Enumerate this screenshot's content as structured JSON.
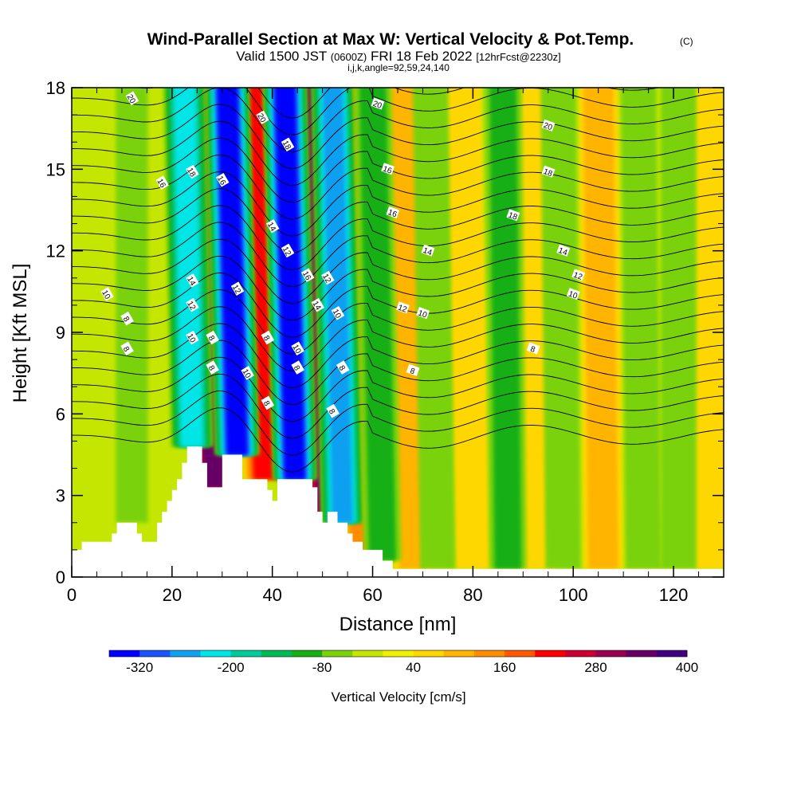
{
  "title": {
    "main": "Wind-Parallel Section at Max W: Vertical Velocity & Pot.Temp.",
    "copyright": "(C)",
    "valid_prefix": "Valid 1500 JST",
    "valid_utc": "(0600Z)",
    "valid_date": "FRI 18 Feb 2022",
    "forecast": "[12hrFcst@2230z]",
    "indices": "i,j,k,angle=92,59,24,140"
  },
  "chart_data": {
    "type": "heatmap",
    "xlabel": "Distance [nm]",
    "ylabel": "Height [Kft MSL]",
    "xlim": [
      0,
      130
    ],
    "ylim": [
      0,
      18
    ],
    "x_ticks": [
      "0",
      "20",
      "40",
      "60",
      "80",
      "100",
      "120"
    ],
    "y_ticks": [
      "0",
      "3",
      "6",
      "9",
      "12",
      "15",
      "18"
    ],
    "colorbar": {
      "title": "Vertical Velocity [cm/s]",
      "tick_labels": [
        "-320",
        "-200",
        "-80",
        "40",
        "160",
        "280",
        "400"
      ],
      "levels": [
        -360,
        -320,
        -280,
        -240,
        -200,
        -160,
        -120,
        -80,
        -40,
        0,
        40,
        80,
        120,
        160,
        200,
        240,
        280,
        320,
        360,
        400
      ],
      "colors": [
        "#0000ff",
        "#1855ff",
        "#0fa0f0",
        "#00e6e6",
        "#00cc99",
        "#00bb55",
        "#16b016",
        "#7ad20a",
        "#c4e600",
        "#f0f000",
        "#ffd700",
        "#ffb400",
        "#ff8c00",
        "#ff5a00",
        "#ff0000",
        "#cc0030",
        "#990050",
        "#660066",
        "#400080"
      ]
    },
    "terrain_profile": [
      [
        0,
        1.0
      ],
      [
        2,
        1.3
      ],
      [
        5,
        1.3
      ],
      [
        8,
        1.6
      ],
      [
        9,
        2.0
      ],
      [
        12,
        2.0
      ],
      [
        13,
        1.6
      ],
      [
        14,
        1.3
      ],
      [
        16,
        1.3
      ],
      [
        17,
        2.0
      ],
      [
        18,
        2.4
      ],
      [
        19,
        2.8
      ],
      [
        20,
        3.2
      ],
      [
        21,
        3.6
      ],
      [
        22,
        4.2
      ],
      [
        23,
        4.8
      ],
      [
        25,
        4.8
      ],
      [
        26,
        4.2
      ],
      [
        27,
        3.3
      ],
      [
        29,
        3.3
      ],
      [
        30,
        4.5
      ],
      [
        33,
        4.5
      ],
      [
        34,
        3.6
      ],
      [
        37,
        3.6
      ],
      [
        39,
        3.2
      ],
      [
        40,
        2.8
      ],
      [
        41,
        3.6
      ],
      [
        47,
        3.6
      ],
      [
        48,
        3.3
      ],
      [
        49,
        2.4
      ],
      [
        50,
        2.0
      ],
      [
        51,
        2.4
      ],
      [
        53,
        2.0
      ],
      [
        55,
        1.6
      ],
      [
        56,
        1.3
      ],
      [
        58,
        1.0
      ],
      [
        62,
        0.6
      ],
      [
        64,
        0.3
      ],
      [
        130,
        0.3
      ]
    ],
    "updraft_bands": [
      {
        "x_bottom": 28.5,
        "x_top": 26,
        "w": 320
      },
      {
        "x_bottom": 38.5,
        "x_top": 36,
        "w": 200
      },
      {
        "x_bottom": 51,
        "x_top": 48.5,
        "w": 320
      },
      {
        "x_bottom": 58,
        "x_top": 55.5,
        "w": 120
      },
      {
        "x_bottom": 68,
        "x_top": 66,
        "w": 80
      },
      {
        "x_bottom": 80,
        "x_top": 78,
        "w": 60
      },
      {
        "x_bottom": 93,
        "x_top": 91,
        "w": 50
      },
      {
        "x_bottom": 106,
        "x_top": 105,
        "w": 100
      },
      {
        "x_bottom": 128,
        "x_top": 128,
        "w": 60
      }
    ],
    "downdraft_bands": [
      {
        "x_bottom": 33,
        "x_top": 31,
        "w": -320
      },
      {
        "x_bottom": 44.5,
        "x_top": 42.5,
        "w": -320
      },
      {
        "x_bottom": 54,
        "x_top": 52,
        "w": -240
      },
      {
        "x_bottom": 24,
        "x_top": 22.5,
        "w": -200
      },
      {
        "x_bottom": 62,
        "x_top": 60,
        "w": -80
      },
      {
        "x_bottom": 73,
        "x_top": 71.5,
        "w": -60
      },
      {
        "x_bottom": 87,
        "x_top": 86,
        "w": -80
      },
      {
        "x_bottom": 98,
        "x_top": 97,
        "w": -60
      },
      {
        "x_bottom": 114,
        "x_top": 113,
        "w": -60
      },
      {
        "x_bottom": 121,
        "x_top": 121,
        "w": -60
      },
      {
        "x_bottom": 12,
        "x_top": 12,
        "w": -40
      }
    ],
    "theta_contour_labels": [
      {
        "text": "20",
        "x": 12,
        "y": 17.6
      },
      {
        "text": "20",
        "x": 38,
        "y": 16.9
      },
      {
        "text": "20",
        "x": 61,
        "y": 17.4
      },
      {
        "text": "20",
        "x": 95,
        "y": 16.6
      },
      {
        "text": "18",
        "x": 24,
        "y": 14.9
      },
      {
        "text": "18",
        "x": 43,
        "y": 15.9
      },
      {
        "text": "18",
        "x": 95,
        "y": 14.9
      },
      {
        "text": "18",
        "x": 88,
        "y": 13.3
      },
      {
        "text": "16",
        "x": 18,
        "y": 14.5
      },
      {
        "text": "16",
        "x": 30,
        "y": 14.6
      },
      {
        "text": "16",
        "x": 63,
        "y": 15.0
      },
      {
        "text": "16",
        "x": 64,
        "y": 13.4
      },
      {
        "text": "16",
        "x": 47,
        "y": 11.1
      },
      {
        "text": "14",
        "x": 40,
        "y": 12.9
      },
      {
        "text": "14",
        "x": 71,
        "y": 12.0
      },
      {
        "text": "14",
        "x": 98,
        "y": 12.0
      },
      {
        "text": "14",
        "x": 24,
        "y": 10.9
      },
      {
        "text": "14",
        "x": 49,
        "y": 10.0
      },
      {
        "text": "12",
        "x": 43,
        "y": 12.0
      },
      {
        "text": "12",
        "x": 33,
        "y": 10.6
      },
      {
        "text": "12",
        "x": 51,
        "y": 11.0
      },
      {
        "text": "12",
        "x": 24,
        "y": 10.0
      },
      {
        "text": "12",
        "x": 66,
        "y": 9.9
      },
      {
        "text": "12",
        "x": 101,
        "y": 11.1
      },
      {
        "text": "10",
        "x": 7,
        "y": 10.4
      },
      {
        "text": "10",
        "x": 24,
        "y": 8.8
      },
      {
        "text": "10",
        "x": 53,
        "y": 9.7
      },
      {
        "text": "10",
        "x": 70,
        "y": 9.7
      },
      {
        "text": "10",
        "x": 45,
        "y": 8.4
      },
      {
        "text": "10",
        "x": 35,
        "y": 7.5
      },
      {
        "text": "10",
        "x": 100,
        "y": 10.4
      },
      {
        "text": "8",
        "x": 11,
        "y": 9.5
      },
      {
        "text": "8",
        "x": 28,
        "y": 8.8
      },
      {
        "text": "8",
        "x": 39,
        "y": 8.8
      },
      {
        "text": "8",
        "x": 28,
        "y": 7.7
      },
      {
        "text": "8",
        "x": 45,
        "y": 7.7
      },
      {
        "text": "8",
        "x": 54,
        "y": 7.7
      },
      {
        "text": "8",
        "x": 68,
        "y": 7.6
      },
      {
        "text": "8",
        "x": 11,
        "y": 8.4
      },
      {
        "text": "8",
        "x": 39,
        "y": 6.4
      },
      {
        "text": "8",
        "x": 52,
        "y": 6.1
      },
      {
        "text": "8",
        "x": 92,
        "y": 8.4
      }
    ]
  }
}
